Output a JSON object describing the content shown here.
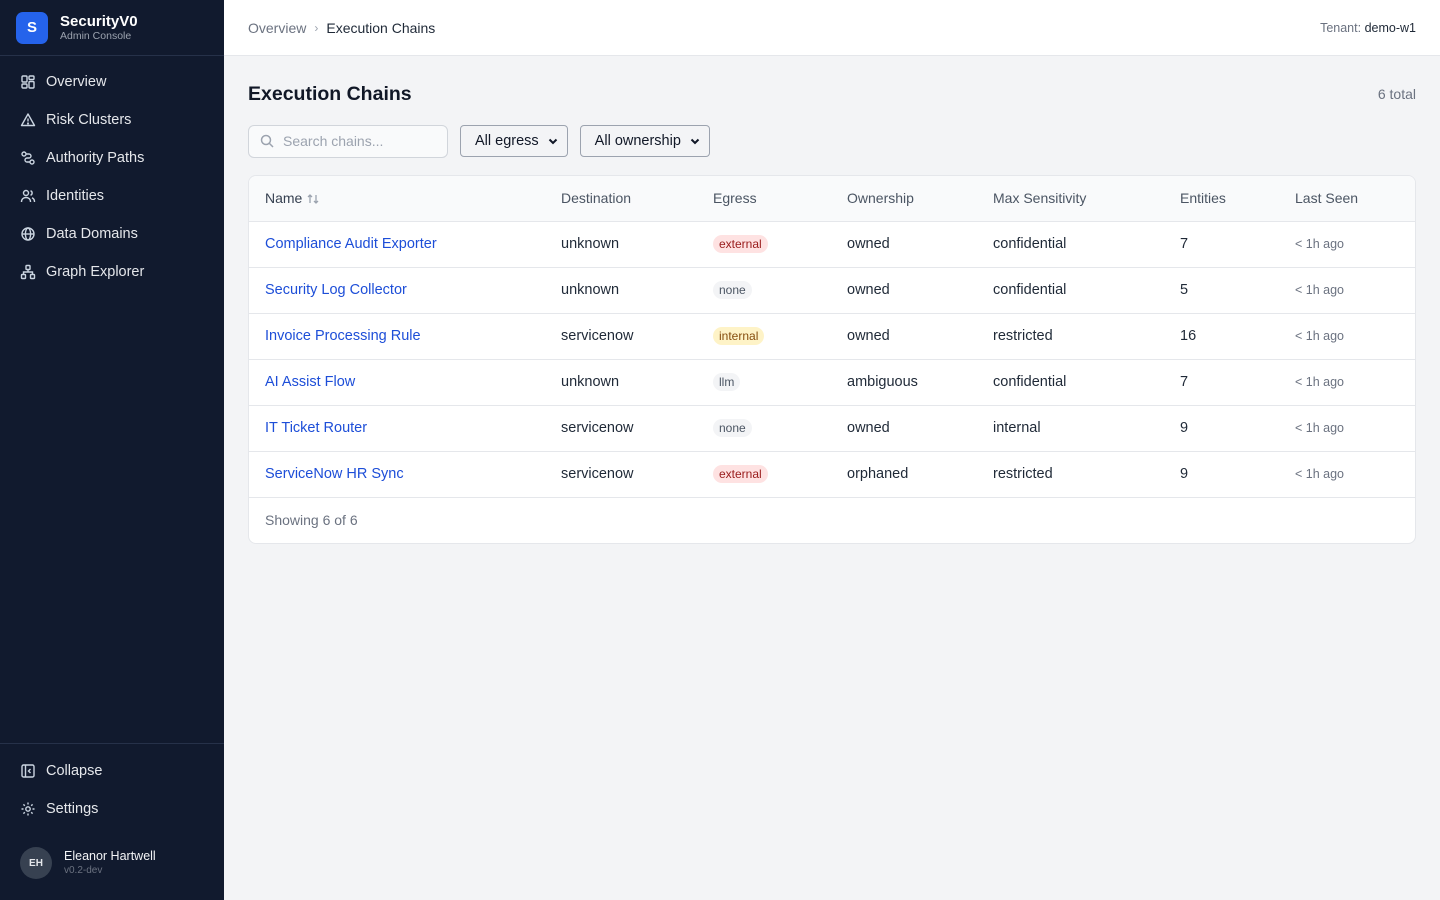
{
  "brand": {
    "initial": "S",
    "title": "SecurityV0",
    "subtitle": "Admin Console"
  },
  "nav": [
    {
      "label": "Overview",
      "icon": "grid-icon"
    },
    {
      "label": "Risk Clusters",
      "icon": "warning-triangle-icon"
    },
    {
      "label": "Authority Paths",
      "icon": "path-icon"
    },
    {
      "label": "Identities",
      "icon": "users-icon"
    },
    {
      "label": "Data Domains",
      "icon": "globe-icon"
    },
    {
      "label": "Graph Explorer",
      "icon": "network-icon"
    }
  ],
  "sidebar_bottom": {
    "collapse_label": "Collapse",
    "settings_label": "Settings"
  },
  "user": {
    "initials": "EH",
    "name": "Eleanor Hartwell",
    "version": "v0.2-dev"
  },
  "breadcrumb": {
    "parent": "Overview",
    "separator": "›",
    "current": "Execution Chains"
  },
  "tenant": {
    "label": "Tenant:",
    "value": "demo-w1"
  },
  "page": {
    "title": "Execution Chains",
    "total": "6 total"
  },
  "filters": {
    "search_placeholder": "Search chains...",
    "egress_selected": "All egress",
    "ownership_selected": "All ownership"
  },
  "table": {
    "columns": [
      "Name",
      "Destination",
      "Egress",
      "Ownership",
      "Max Sensitivity",
      "Entities",
      "Last Seen"
    ],
    "rows": [
      {
        "name": "Compliance Audit Exporter",
        "destination": "unknown",
        "egress": "external",
        "ownership": "owned",
        "sensitivity": "confidential",
        "entities": "7",
        "last_seen": "< 1h ago"
      },
      {
        "name": "Security Log Collector",
        "destination": "unknown",
        "egress": "none",
        "ownership": "owned",
        "sensitivity": "confidential",
        "entities": "5",
        "last_seen": "< 1h ago"
      },
      {
        "name": "Invoice Processing Rule",
        "destination": "servicenow",
        "egress": "internal",
        "ownership": "owned",
        "sensitivity": "restricted",
        "entities": "16",
        "last_seen": "< 1h ago"
      },
      {
        "name": "AI Assist Flow",
        "destination": "unknown",
        "egress": "llm",
        "ownership": "ambiguous",
        "sensitivity": "confidential",
        "entities": "7",
        "last_seen": "< 1h ago"
      },
      {
        "name": "IT Ticket Router",
        "destination": "servicenow",
        "egress": "none",
        "ownership": "owned",
        "sensitivity": "internal",
        "entities": "9",
        "last_seen": "< 1h ago"
      },
      {
        "name": "ServiceNow HR Sync",
        "destination": "servicenow",
        "egress": "external",
        "ownership": "orphaned",
        "sensitivity": "restricted",
        "entities": "9",
        "last_seen": "< 1h ago"
      }
    ],
    "footer": "Showing 6 of 6"
  },
  "colors": {
    "sidebar_bg": "#111a2e",
    "accent": "#2563eb",
    "link": "#1d4ed8",
    "badge_external": "#fee2e2",
    "badge_internal": "#fef3c7",
    "badge_neutral": "#f3f4f6"
  }
}
